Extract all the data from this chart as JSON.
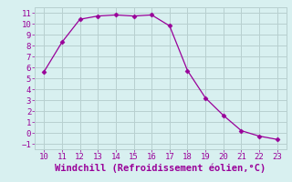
{
  "x": [
    10,
    11,
    12,
    13,
    14,
    15,
    16,
    17,
    18,
    19,
    20,
    21,
    22,
    23
  ],
  "y": [
    5.6,
    8.3,
    10.4,
    10.7,
    10.8,
    10.7,
    10.8,
    9.8,
    5.7,
    3.2,
    1.6,
    0.2,
    -0.3,
    -0.6
  ],
  "xlim": [
    9.5,
    23.5
  ],
  "ylim": [
    -1.5,
    11.5
  ],
  "xticks": [
    10,
    11,
    12,
    13,
    14,
    15,
    16,
    17,
    18,
    19,
    20,
    21,
    22,
    23
  ],
  "yticks": [
    -1,
    0,
    1,
    2,
    3,
    4,
    5,
    6,
    7,
    8,
    9,
    10,
    11
  ],
  "xlabel": "Windchill (Refroidissement éolien,°C)",
  "line_color": "#990099",
  "marker": "D",
  "marker_size": 2.5,
  "bg_color": "#d8f0f0",
  "grid_color": "#b8d0d0",
  "label_color": "#990099",
  "tick_color": "#990099",
  "tick_fontsize": 6.5,
  "xlabel_fontsize": 7.5
}
